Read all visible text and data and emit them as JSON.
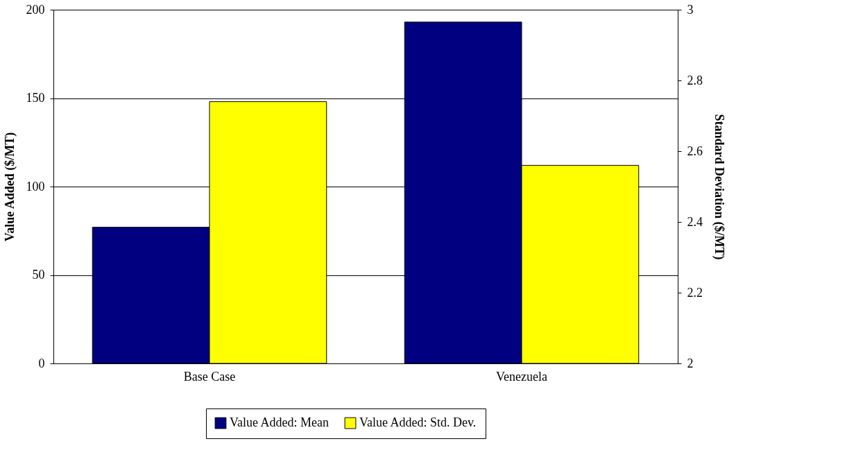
{
  "chart_data": {
    "type": "bar",
    "categories": [
      "Base Case",
      "Venezuela"
    ],
    "ylabel": "Value Added ($/MT)",
    "y2label": "Standard Deviation ($/MT)",
    "series": [
      {
        "name": "Value Added: Mean",
        "color": "#000080",
        "values": [
          77,
          193
        ]
      },
      {
        "name": "Value Added: Std. Dev.",
        "color": "#ffff00",
        "values": [
          2.74,
          2.56
        ],
        "axis": "y2"
      }
    ],
    "ylim": [
      0,
      200
    ],
    "yticks": [
      0,
      50,
      100,
      150,
      200
    ],
    "y2lim": [
      2,
      3
    ],
    "y2ticks": [
      2,
      2.2,
      2.4,
      2.6,
      2.8,
      3
    ],
    "grid": "y",
    "legend": "bottom"
  }
}
